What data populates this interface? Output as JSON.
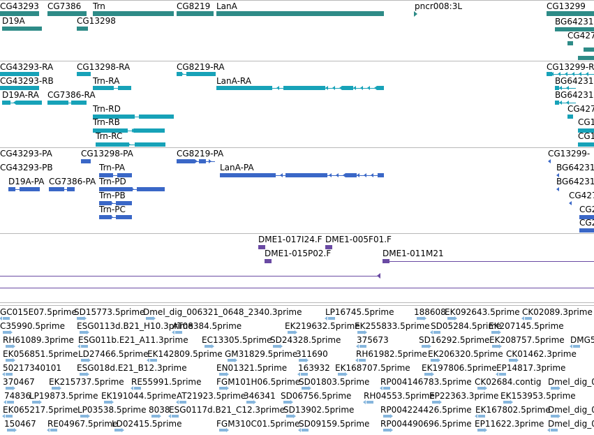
{
  "colors": {
    "gene": "#2e8b87",
    "transcript": "#17a2b8",
    "protein": "#3a67c7",
    "clone": "#6a4aa3",
    "est": "#86b6dd",
    "separator": "#b8b8b8"
  },
  "tracks": {
    "genes": [
      "CG43293",
      "CG7386",
      "Trn",
      "CG8219",
      "LanA",
      "pncr008:3L",
      "CG13299",
      "D19A",
      "CG13298",
      "BG64231",
      "CG427"
    ],
    "transcripts": [
      "CG43293-RA",
      "CG13298-RA",
      "CG8219-RA",
      "CG13299-R",
      "CG43293-RB",
      "Trn-RA",
      "LanA-RA",
      "BG64231",
      "D19A-RA",
      "CG7386-RA",
      "BG64231",
      "Trn-RD",
      "CG427",
      "Trn-RB",
      "CG1",
      "Trn-RC",
      "CG1"
    ],
    "proteins": [
      "CG43293-PA",
      "CG13298-PA",
      "CG8219-PA",
      "CG13299-",
      "CG43293-PB",
      "Trn-PA",
      "LanA-PA",
      "BG64231",
      "D19A-PA",
      "CG7386-PA",
      "Trn-PD",
      "BG64231",
      "Trn-PB",
      "CG427",
      "Trn-PC",
      "CG2",
      "CG2"
    ],
    "clones": [
      "DME1-017I24.F",
      "DME1-005F01.F",
      "DME1-015P02.F",
      "DME1-011M21"
    ],
    "ests": [
      "GC015E07.5prime",
      "SD15773.5prime",
      "Dmel_dig_006321_0648_2340.3prime",
      "LP16745.5prime",
      "188608",
      "EK092643.5prime",
      "CK02089.3prime",
      "C35990.5prime",
      "ESG0113d.B21_H10.3prime",
      "AT08384.5prime",
      "EK219632.5prime",
      "EK255833.5prime",
      "SD05284.5prime",
      "EK207145.5prime",
      "RH61089.3prime",
      "ESG011b.E21_A11.3prime",
      "EC13305.5prime",
      "SD24328.5prime",
      "375673",
      "SD16292.5prime",
      "EK208757.5prime",
      "DMG5",
      "EK056851.5prime",
      "LD27466.5prime",
      "EK142809.5prime",
      "GM31829.5prime",
      "311690",
      "RH61982.5prime",
      "EK206320.5prime",
      "CK01462.3prime",
      "50217340101",
      "ESG018d.E21_B12.3prime",
      "EN01321.5prime",
      "163932",
      "EK168707.5prime",
      "EK197806.5prime",
      "EP14817.3prime",
      "370467",
      "EK215737.5prime",
      "RE55991.5prime",
      "FGM101H06.5prime",
      "SD01803.5prime",
      "RP004146783.5prime",
      "CK02684.contig",
      "Dmel_dig_0",
      "74836",
      "LP19873.5prime",
      "EK191044.5prime",
      "AT21923.5prime",
      "346341",
      "SD06756.5prime",
      "RH04553.5prime",
      "EP22363.3prime",
      "EK153953.5prime",
      "EK065217.5prime",
      "LP03538.5prime",
      "8038",
      "ESG0117d.B21_C12.3prime",
      "SD13902.5prime",
      "RP004224426.5prime",
      "EK167802.5prime",
      "Dmel_dig_0",
      "150467",
      "RE04967.5prime",
      "LD02415.5prime",
      "FGM310C01.5prime",
      "SD09159.5prime",
      "RP004490696.5prime",
      "EP11622.3prime",
      "Dmel_dig_0"
    ]
  }
}
